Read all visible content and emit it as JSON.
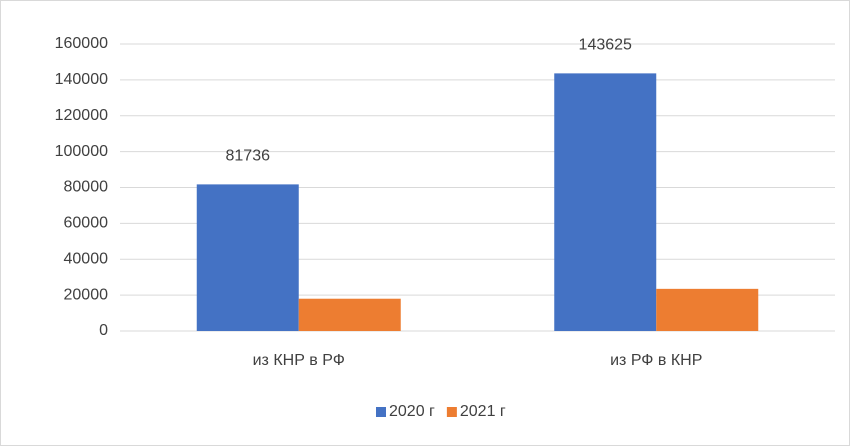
{
  "chart_data": {
    "type": "bar",
    "categories": [
      "из КНР в РФ",
      "из РФ в КНР"
    ],
    "series": [
      {
        "name": "2020 г",
        "color": "#4472c4",
        "values": [
          81736,
          143625
        ],
        "show_labels": true
      },
      {
        "name": "2021 г",
        "color": "#ed7d31",
        "values": [
          18000,
          23500
        ],
        "show_labels": false
      }
    ],
    "ylim": [
      0,
      160000
    ],
    "yticks": [
      0,
      20000,
      40000,
      60000,
      80000,
      100000,
      120000,
      140000,
      160000
    ],
    "grid": true,
    "legend": "bottom"
  }
}
